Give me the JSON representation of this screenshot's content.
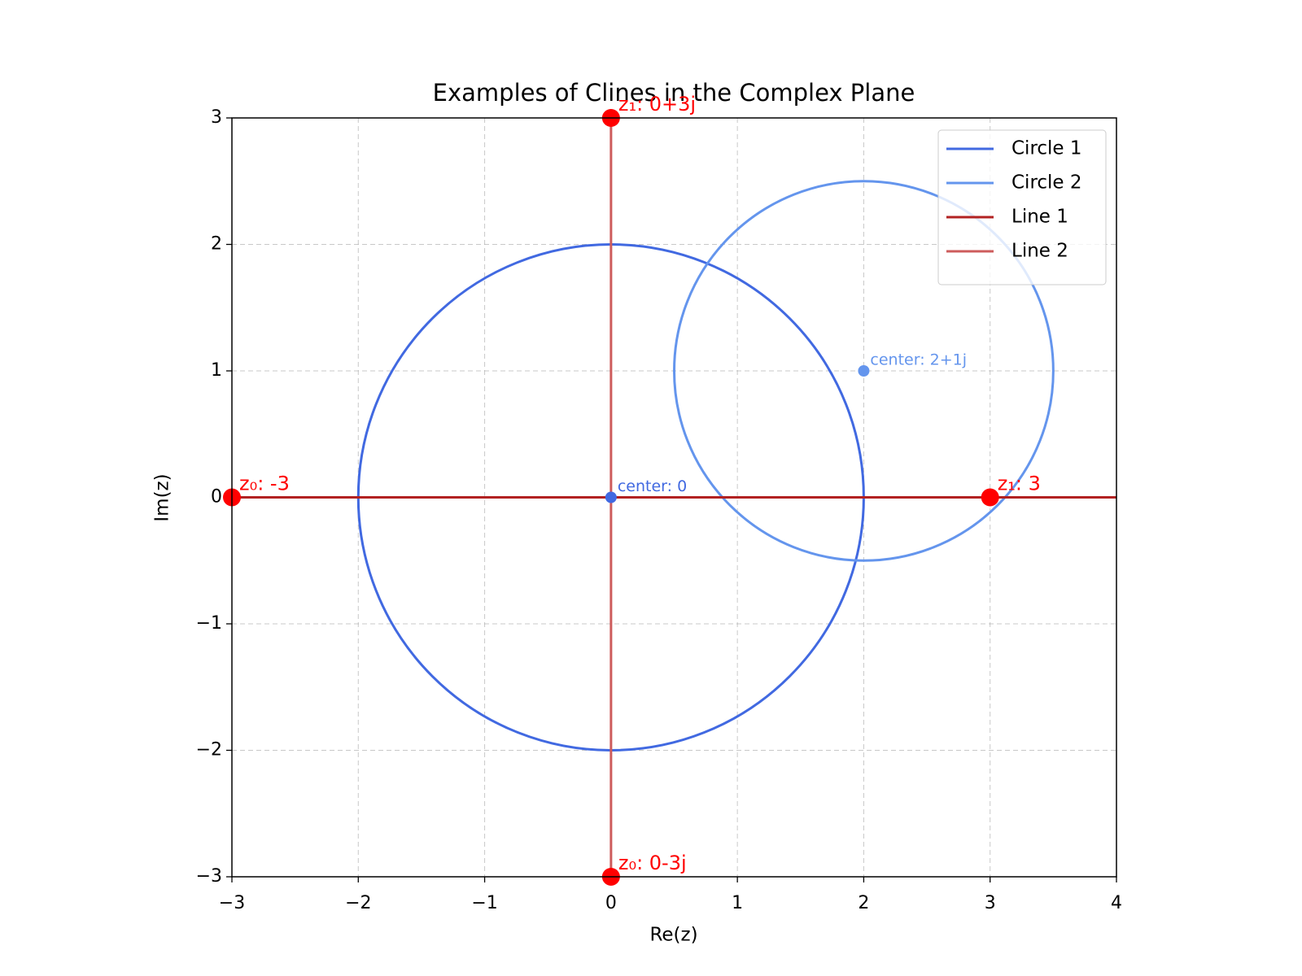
{
  "chart_data": {
    "type": "cline",
    "title": "Examples of Clines in the Complex Plane",
    "x_label": "Re(z)",
    "y_label": "Im(z)",
    "xlim": [
      -3,
      4
    ],
    "ylim": [
      -3,
      3
    ],
    "xticks": [
      {
        "value": -3,
        "label": "−3"
      },
      {
        "value": -2,
        "label": "−2"
      },
      {
        "value": -1,
        "label": "−1"
      },
      0,
      1,
      2,
      3,
      4
    ],
    "yticks": [
      {
        "value": -3,
        "label": "−3"
      },
      {
        "value": -2,
        "label": "−2"
      },
      {
        "value": -1,
        "label": "−1"
      },
      0,
      1,
      2,
      3
    ],
    "grid": true,
    "legend": "upper right",
    "point_color": "#ff0000",
    "circles": [
      {
        "name": "Circle 1",
        "color": "#4169e1",
        "center": [
          0,
          0
        ],
        "radius": 2,
        "center_label": "center: 0"
      },
      {
        "name": "Circle 2",
        "color": "#6495ed",
        "center": [
          2,
          1
        ],
        "radius": 1.5,
        "center_label": "center: 2+1j"
      }
    ],
    "lines": [
      {
        "name": "Line 1",
        "color": "#b22222",
        "z0": [
          -3,
          0
        ],
        "z1": [
          3,
          0
        ],
        "z0_label": "z₀: -3",
        "z1_label": "z₁: 3"
      },
      {
        "name": "Line 2",
        "color": "#cd5c5c",
        "z0": [
          0,
          -3
        ],
        "z1": [
          0,
          3
        ],
        "z0_label": "z₀: 0-3j",
        "z1_label": "z₁: 0+3j"
      }
    ]
  }
}
